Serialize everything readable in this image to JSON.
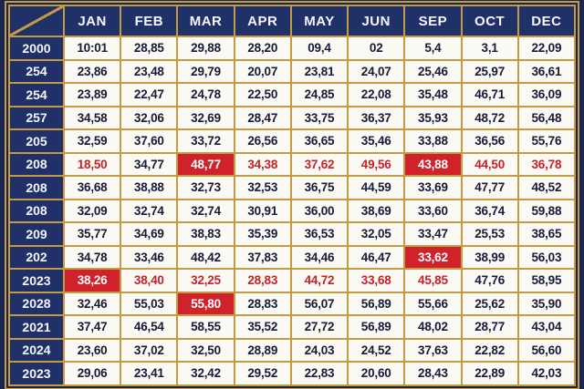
{
  "table": {
    "corner_label": "",
    "columns": [
      "JAN",
      "FEB",
      "MAR",
      "APR",
      "MAY",
      "JUN",
      "SEP",
      "OCT",
      "DEC"
    ],
    "rows": [
      {
        "label": "2000",
        "cells": [
          {
            "v": "10:01"
          },
          {
            "v": "28,85"
          },
          {
            "v": "29,88"
          },
          {
            "v": "28,20"
          },
          {
            "v": "09,4"
          },
          {
            "v": "02"
          },
          {
            "v": "5,4"
          },
          {
            "v": "3,1"
          },
          {
            "v": "22,09"
          }
        ]
      },
      {
        "label": "254",
        "cells": [
          {
            "v": "23,86"
          },
          {
            "v": "23,48"
          },
          {
            "v": "29,79"
          },
          {
            "v": "20,07"
          },
          {
            "v": "23,81"
          },
          {
            "v": "24,07"
          },
          {
            "v": "25,46"
          },
          {
            "v": "25,97"
          },
          {
            "v": "36,61"
          }
        ]
      },
      {
        "label": "254",
        "cells": [
          {
            "v": "23,89"
          },
          {
            "v": "22,47"
          },
          {
            "v": "24,78"
          },
          {
            "v": "22,50"
          },
          {
            "v": "24,85"
          },
          {
            "v": "22,08"
          },
          {
            "v": "35,48"
          },
          {
            "v": "46,71"
          },
          {
            "v": "36,09"
          }
        ]
      },
      {
        "label": "257",
        "cells": [
          {
            "v": "34,58"
          },
          {
            "v": "32,06"
          },
          {
            "v": "32,69"
          },
          {
            "v": "28,47"
          },
          {
            "v": "33,75"
          },
          {
            "v": "36,37"
          },
          {
            "v": "35,93"
          },
          {
            "v": "48,72"
          },
          {
            "v": "56,48"
          }
        ]
      },
      {
        "label": "205",
        "cells": [
          {
            "v": "32,59"
          },
          {
            "v": "37,60"
          },
          {
            "v": "33,72"
          },
          {
            "v": "26,56"
          },
          {
            "v": "36,65"
          },
          {
            "v": "35,46"
          },
          {
            "v": "33,88"
          },
          {
            "v": "36,56"
          },
          {
            "v": "55,76"
          }
        ]
      },
      {
        "label": "208",
        "cells": [
          {
            "v": "18,50",
            "s": "red"
          },
          {
            "v": "34,77"
          },
          {
            "v": "48,77",
            "s": "redbg"
          },
          {
            "v": "34,38",
            "s": "red"
          },
          {
            "v": "37,62",
            "s": "red"
          },
          {
            "v": "49,56",
            "s": "red"
          },
          {
            "v": "43,88",
            "s": "redbg"
          },
          {
            "v": "44,50",
            "s": "red"
          },
          {
            "v": "36,78",
            "s": "red"
          }
        ]
      },
      {
        "label": "208",
        "cells": [
          {
            "v": "36,68"
          },
          {
            "v": "38,88"
          },
          {
            "v": "32,73"
          },
          {
            "v": "32,53"
          },
          {
            "v": "36,75"
          },
          {
            "v": "44,59"
          },
          {
            "v": "33,69"
          },
          {
            "v": "47,77"
          },
          {
            "v": "48,52"
          }
        ]
      },
      {
        "label": "208",
        "cells": [
          {
            "v": "32,09"
          },
          {
            "v": "32,74"
          },
          {
            "v": "32,74"
          },
          {
            "v": "30,91"
          },
          {
            "v": "36,00"
          },
          {
            "v": "38,69"
          },
          {
            "v": "33,60"
          },
          {
            "v": "36,74"
          },
          {
            "v": "59,88"
          }
        ]
      },
      {
        "label": "209",
        "cells": [
          {
            "v": "35,77"
          },
          {
            "v": "34,69"
          },
          {
            "v": "38,83"
          },
          {
            "v": "35,39"
          },
          {
            "v": "36,53"
          },
          {
            "v": "32,05"
          },
          {
            "v": "33,47"
          },
          {
            "v": "25,53"
          },
          {
            "v": "38,65"
          }
        ]
      },
      {
        "label": "202",
        "cells": [
          {
            "v": "34,78"
          },
          {
            "v": "33,46"
          },
          {
            "v": "48,42"
          },
          {
            "v": "37,83"
          },
          {
            "v": "34,46"
          },
          {
            "v": "46,47"
          },
          {
            "v": "33,62",
            "s": "redbg"
          },
          {
            "v": "38,99"
          },
          {
            "v": "56,03"
          }
        ]
      },
      {
        "label": "2023",
        "cells": [
          {
            "v": "38,26",
            "s": "redbg"
          },
          {
            "v": "38,40",
            "s": "red"
          },
          {
            "v": "32,25",
            "s": "red"
          },
          {
            "v": "28,83",
            "s": "red"
          },
          {
            "v": "44,72",
            "s": "red"
          },
          {
            "v": "33,68",
            "s": "red"
          },
          {
            "v": "45,85",
            "s": "red"
          },
          {
            "v": "47,76"
          },
          {
            "v": "58,95"
          }
        ]
      },
      {
        "label": "2028",
        "cells": [
          {
            "v": "32,46"
          },
          {
            "v": "55,03"
          },
          {
            "v": "55,80",
            "s": "redbg"
          },
          {
            "v": "28,83"
          },
          {
            "v": "56,07"
          },
          {
            "v": "56,89"
          },
          {
            "v": "55,66"
          },
          {
            "v": "25,62"
          },
          {
            "v": "35,90"
          }
        ]
      },
      {
        "label": "2021",
        "cells": [
          {
            "v": "37,47"
          },
          {
            "v": "46,54"
          },
          {
            "v": "58,55"
          },
          {
            "v": "35,52"
          },
          {
            "v": "27,72"
          },
          {
            "v": "56,89"
          },
          {
            "v": "48,02"
          },
          {
            "v": "28,77"
          },
          {
            "v": "43,04"
          }
        ]
      },
      {
        "label": "2024",
        "cells": [
          {
            "v": "23,60"
          },
          {
            "v": "37,02"
          },
          {
            "v": "32,50"
          },
          {
            "v": "28,89"
          },
          {
            "v": "24,03"
          },
          {
            "v": "24,52"
          },
          {
            "v": "37,63"
          },
          {
            "v": "22,82"
          },
          {
            "v": "56,60"
          }
        ]
      },
      {
        "label": "2023",
        "cells": [
          {
            "v": "29,06"
          },
          {
            "v": "23,41"
          },
          {
            "v": "32,42"
          },
          {
            "v": "29,52"
          },
          {
            "v": "22,83"
          },
          {
            "v": "20,60"
          },
          {
            "v": "28,43"
          },
          {
            "v": "22,89"
          },
          {
            "v": "42,03"
          }
        ]
      }
    ]
  },
  "colors": {
    "navy_background": "#182550",
    "navy_cell": "#203068",
    "gold_grid": "#c49a42",
    "cell_background": "#fbf9f3",
    "cell_text": "#141c38",
    "red_highlight_background": "#d0222b",
    "red_highlight_text": "#c1232b"
  }
}
